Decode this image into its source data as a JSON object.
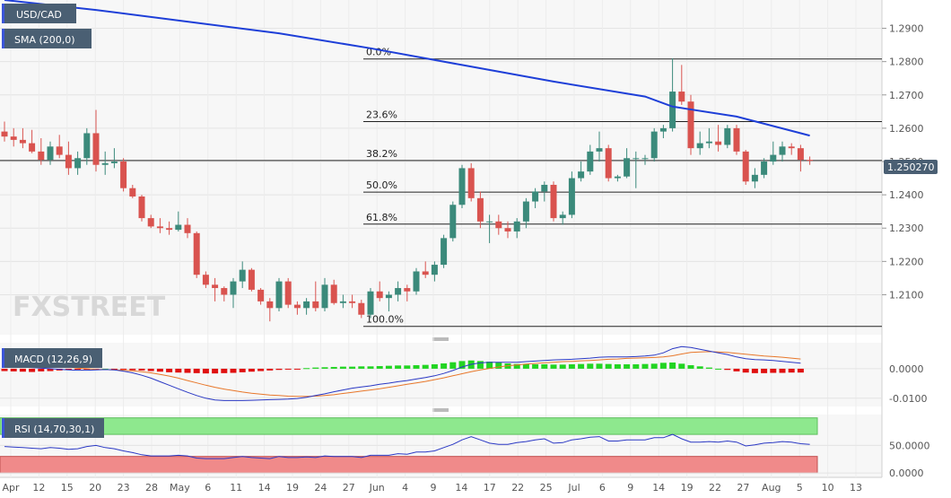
{
  "chart_data": {
    "type": "candlestick",
    "symbol": "USD/CAD",
    "overlay_label": "SMA (200,0)",
    "watermark": "FXSTREET",
    "last_price_label": "1.250270",
    "last_price": 1.2503,
    "price_axis": {
      "ylim": [
        1.198,
        1.2985
      ],
      "ticks": [
        "1.2100",
        "1.2200",
        "1.2300",
        "1.2400",
        "1.2500",
        "1.2600",
        "1.2700",
        "1.2800",
        "1.2900"
      ]
    },
    "fib_levels": [
      {
        "label": "0.0%",
        "value": 1.2808
      },
      {
        "label": "23.6%",
        "value": 1.262
      },
      {
        "label": "38.2%",
        "value": 1.2503
      },
      {
        "label": "50.0%",
        "value": 1.2408
      },
      {
        "label": "61.8%",
        "value": 1.2312
      },
      {
        "label": "100.0%",
        "value": 1.2005
      }
    ],
    "x_ticks": [
      "Apr",
      "12",
      "15",
      "20",
      "23",
      "28",
      "May",
      "6",
      "11",
      "14",
      "19",
      "24",
      "27",
      "Jun",
      "4",
      "9",
      "14",
      "17",
      "22",
      "25",
      "Jul",
      "6",
      "9",
      "14",
      "19",
      "22",
      "27",
      "Aug",
      "5",
      "10",
      "13"
    ],
    "candles": [
      [
        1.259,
        1.262,
        1.256,
        1.2575
      ],
      [
        1.2575,
        1.26,
        1.2545,
        1.2565
      ],
      [
        1.2565,
        1.26,
        1.254,
        1.2555
      ],
      [
        1.2555,
        1.2595,
        1.2525,
        1.253
      ],
      [
        1.253,
        1.257,
        1.249,
        1.2505
      ],
      [
        1.2505,
        1.256,
        1.249,
        1.2545
      ],
      [
        1.2545,
        1.258,
        1.251,
        1.252
      ],
      [
        1.252,
        1.256,
        1.246,
        1.248
      ],
      [
        1.248,
        1.253,
        1.246,
        1.251
      ],
      [
        1.251,
        1.26,
        1.249,
        1.2585
      ],
      [
        1.2585,
        1.2655,
        1.247,
        1.249
      ],
      [
        1.249,
        1.253,
        1.246,
        1.2495
      ],
      [
        1.2495,
        1.254,
        1.248,
        1.25
      ],
      [
        1.25,
        1.251,
        1.241,
        1.242
      ],
      [
        1.242,
        1.243,
        1.239,
        1.2395
      ],
      [
        1.2395,
        1.24,
        1.232,
        1.233
      ],
      [
        1.233,
        1.234,
        1.23,
        1.2305
      ],
      [
        1.2305,
        1.233,
        1.2285,
        1.23
      ],
      [
        1.23,
        1.232,
        1.228,
        1.2295
      ],
      [
        1.2295,
        1.235,
        1.229,
        1.231
      ],
      [
        1.231,
        1.233,
        1.227,
        1.2285
      ],
      [
        1.2285,
        1.229,
        1.215,
        1.216
      ],
      [
        1.216,
        1.217,
        1.212,
        1.213
      ],
      [
        1.213,
        1.215,
        1.208,
        1.212
      ],
      [
        1.212,
        1.2125,
        1.208,
        1.21
      ],
      [
        1.21,
        1.215,
        1.206,
        1.214
      ],
      [
        1.214,
        1.22,
        1.212,
        1.2175
      ],
      [
        1.2175,
        1.218,
        1.211,
        1.2115
      ],
      [
        1.2115,
        1.212,
        1.207,
        1.208
      ],
      [
        1.208,
        1.209,
        1.202,
        1.206
      ],
      [
        1.206,
        1.215,
        1.205,
        1.214
      ],
      [
        1.214,
        1.215,
        1.206,
        1.207
      ],
      [
        1.207,
        1.208,
        1.204,
        1.206
      ],
      [
        1.206,
        1.209,
        1.204,
        1.208
      ],
      [
        1.208,
        1.214,
        1.205,
        1.206
      ],
      [
        1.206,
        1.215,
        1.205,
        1.213
      ],
      [
        1.213,
        1.2145,
        1.207,
        1.2075
      ],
      [
        1.2075,
        1.21,
        1.206,
        1.208
      ],
      [
        1.208,
        1.21,
        1.206,
        1.2075
      ],
      [
        1.2075,
        1.2085,
        1.203,
        1.204
      ],
      [
        1.204,
        1.212,
        1.203,
        1.211
      ],
      [
        1.211,
        1.214,
        1.208,
        1.209
      ],
      [
        1.209,
        1.211,
        1.205,
        1.21
      ],
      [
        1.21,
        1.214,
        1.208,
        1.212
      ],
      [
        1.212,
        1.213,
        1.208,
        1.211
      ],
      [
        1.211,
        1.218,
        1.21,
        1.217
      ],
      [
        1.217,
        1.22,
        1.215,
        1.216
      ],
      [
        1.216,
        1.22,
        1.214,
        1.219
      ],
      [
        1.219,
        1.228,
        1.218,
        1.227
      ],
      [
        1.227,
        1.238,
        1.226,
        1.237
      ],
      [
        1.237,
        1.249,
        1.236,
        1.248
      ],
      [
        1.248,
        1.2495,
        1.238,
        1.239
      ],
      [
        1.239,
        1.241,
        1.23,
        1.232
      ],
      [
        1.232,
        1.234,
        1.2255,
        1.232
      ],
      [
        1.232,
        1.234,
        1.228,
        1.23
      ],
      [
        1.23,
        1.232,
        1.227,
        1.229
      ],
      [
        1.229,
        1.233,
        1.227,
        1.232
      ],
      [
        1.232,
        1.239,
        1.23,
        1.238
      ],
      [
        1.238,
        1.242,
        1.236,
        1.241
      ],
      [
        1.241,
        1.244,
        1.238,
        1.243
      ],
      [
        1.243,
        1.244,
        1.232,
        1.233
      ],
      [
        1.233,
        1.235,
        1.231,
        1.234
      ],
      [
        1.234,
        1.247,
        1.233,
        1.245
      ],
      [
        1.245,
        1.25,
        1.244,
        1.247
      ],
      [
        1.247,
        1.255,
        1.246,
        1.253
      ],
      [
        1.253,
        1.259,
        1.25,
        1.254
      ],
      [
        1.254,
        1.255,
        1.244,
        1.245
      ],
      [
        1.245,
        1.246,
        1.244,
        1.2455
      ],
      [
        1.2455,
        1.254,
        1.245,
        1.251
      ],
      [
        1.251,
        1.253,
        1.242,
        1.251
      ],
      [
        1.251,
        1.252,
        1.249,
        1.251
      ],
      [
        1.251,
        1.26,
        1.25,
        1.259
      ],
      [
        1.259,
        1.261,
        1.257,
        1.26
      ],
      [
        1.26,
        1.281,
        1.259,
        1.271
      ],
      [
        1.271,
        1.279,
        1.267,
        1.268
      ],
      [
        1.268,
        1.27,
        1.252,
        1.254
      ],
      [
        1.254,
        1.259,
        1.252,
        1.2555
      ],
      [
        1.2555,
        1.26,
        1.254,
        1.256
      ],
      [
        1.256,
        1.261,
        1.253,
        1.255
      ],
      [
        1.255,
        1.261,
        1.254,
        1.26
      ],
      [
        1.26,
        1.261,
        1.252,
        1.253
      ],
      [
        1.253,
        1.2535,
        1.243,
        1.244
      ],
      [
        1.244,
        1.248,
        1.242,
        1.246
      ],
      [
        1.246,
        1.251,
        1.245,
        1.25
      ],
      [
        1.25,
        1.256,
        1.249,
        1.252
      ],
      [
        1.252,
        1.256,
        1.25,
        1.2545
      ],
      [
        1.2545,
        1.2555,
        1.252,
        1.254
      ],
      [
        1.254,
        1.255,
        1.247,
        1.2505
      ],
      [
        1.2505,
        1.2515,
        1.249,
        1.2503
      ]
    ],
    "sma": [
      [
        0,
        1.2985
      ],
      [
        10,
        1.2955
      ],
      [
        20,
        1.292
      ],
      [
        30,
        1.2885
      ],
      [
        40,
        1.284
      ],
      [
        50,
        1.279
      ],
      [
        60,
        1.274
      ],
      [
        70,
        1.2695
      ],
      [
        73,
        1.2665
      ],
      [
        80,
        1.2635
      ],
      [
        88,
        1.2578
      ]
    ],
    "macd": {
      "label": "MACD (12,26,9)",
      "ylim": [
        -0.0128,
        0.0088
      ],
      "ticks": [
        {
          "label": "0.0000",
          "value": 0.0
        },
        {
          "label": "-0.0100",
          "value": -0.01
        }
      ],
      "histogram": [
        -0.0008,
        -0.0009,
        -0.001,
        -0.0011,
        -0.0009,
        -0.0008,
        -0.0006,
        -0.0004,
        -0.0003,
        -0.0002,
        -0.0001,
        0.0,
        -0.0001,
        -0.0003,
        -0.0005,
        -0.0006,
        -0.0008,
        -0.001,
        -0.0012,
        -0.0013,
        -0.0014,
        -0.0015,
        -0.0016,
        -0.0016,
        -0.0015,
        -0.0014,
        -0.0012,
        -0.001,
        -0.0008,
        -0.0006,
        -0.0004,
        -0.0002,
        -0.0001,
        0.0002,
        0.0004,
        0.0005,
        0.0006,
        0.0007,
        0.0007,
        0.0008,
        0.0008,
        0.0009,
        0.001,
        0.0011,
        0.0011,
        0.0012,
        0.0013,
        0.0015,
        0.0018,
        0.0022,
        0.0026,
        0.0028,
        0.0026,
        0.0024,
        0.0021,
        0.0018,
        0.0016,
        0.0015,
        0.0015,
        0.0015,
        0.0014,
        0.0014,
        0.0015,
        0.0016,
        0.0017,
        0.0017,
        0.0016,
        0.0015,
        0.0015,
        0.0015,
        0.0016,
        0.0017,
        0.002,
        0.0021,
        0.0017,
        0.0012,
        0.0008,
        0.0004,
        0.0,
        -0.0004,
        -0.0009,
        -0.0013,
        -0.0015,
        -0.0015,
        -0.0014,
        -0.0014,
        -0.0013,
        -0.0013
      ],
      "macd_line": [
        0.0009,
        0.0008,
        0.0006,
        0.0004,
        0.0002,
        0.0,
        -0.0002,
        -0.0004,
        -0.0005,
        -0.0005,
        -0.0004,
        -0.0003,
        -0.0004,
        -0.0008,
        -0.0014,
        -0.0022,
        -0.0032,
        -0.0044,
        -0.0056,
        -0.0068,
        -0.008,
        -0.0091,
        -0.01,
        -0.0106,
        -0.0108,
        -0.0108,
        -0.0108,
        -0.0107,
        -0.0106,
        -0.0105,
        -0.0104,
        -0.0103,
        -0.0101,
        -0.0097,
        -0.0091,
        -0.0085,
        -0.0078,
        -0.0072,
        -0.0066,
        -0.0062,
        -0.0058,
        -0.0053,
        -0.0049,
        -0.0044,
        -0.004,
        -0.0035,
        -0.003,
        -0.0024,
        -0.0016,
        -0.0006,
        0.0006,
        0.0015,
        0.002,
        0.0022,
        0.0022,
        0.0022,
        0.0022,
        0.0024,
        0.0026,
        0.0028,
        0.003,
        0.0031,
        0.0032,
        0.0034,
        0.0036,
        0.0039,
        0.004,
        0.004,
        0.004,
        0.0041,
        0.0043,
        0.0046,
        0.0054,
        0.0068,
        0.0075,
        0.0072,
        0.0066,
        0.006,
        0.0054,
        0.0048,
        0.004,
        0.0034,
        0.0031,
        0.003,
        0.0028,
        0.0025,
        0.0022,
        0.0019
      ],
      "signal_line": [
        0.0017,
        0.0017,
        0.0016,
        0.0015,
        0.0013,
        0.0011,
        0.0008,
        0.0005,
        0.0002,
        0.0,
        -0.0002,
        -0.0003,
        -0.0004,
        -0.0005,
        -0.0007,
        -0.001,
        -0.0014,
        -0.0019,
        -0.0025,
        -0.0032,
        -0.004,
        -0.0048,
        -0.0056,
        -0.0063,
        -0.0069,
        -0.0074,
        -0.0079,
        -0.0083,
        -0.0086,
        -0.0089,
        -0.0091,
        -0.0093,
        -0.0094,
        -0.0094,
        -0.0093,
        -0.0091,
        -0.0088,
        -0.0084,
        -0.008,
        -0.0076,
        -0.0072,
        -0.0068,
        -0.0063,
        -0.0058,
        -0.0053,
        -0.0048,
        -0.0043,
        -0.0037,
        -0.0031,
        -0.0024,
        -0.0017,
        -0.001,
        -0.0004,
        0.0001,
        0.0006,
        0.001,
        0.0013,
        0.0016,
        0.0018,
        0.002,
        0.0022,
        0.0024,
        0.0025,
        0.0027,
        0.0028,
        0.003,
        0.0032,
        0.0033,
        0.0035,
        0.0036,
        0.0037,
        0.0038,
        0.004,
        0.0044,
        0.005,
        0.0055,
        0.0057,
        0.0058,
        0.0057,
        0.0055,
        0.0052,
        0.0049,
        0.0046,
        0.0043,
        0.0041,
        0.0039,
        0.0036,
        0.0033
      ]
    },
    "rsi": {
      "label": "RSI (14,70,30,1)",
      "ylim": [
        -8,
        106
      ],
      "overbought": 70,
      "oversold": 30,
      "ticks": [
        {
          "label": "50.0000",
          "value": 50
        },
        {
          "label": "0.0000",
          "value": 0
        }
      ],
      "values": [
        48,
        47,
        46,
        45,
        44,
        46,
        45,
        43,
        44,
        48,
        50,
        46,
        44,
        40,
        37,
        33,
        31,
        31,
        31,
        32,
        31,
        27,
        26,
        26,
        26,
        28,
        30,
        28,
        27,
        26,
        30,
        28,
        28,
        29,
        28,
        31,
        30,
        30,
        30,
        28,
        32,
        32,
        32,
        35,
        34,
        38,
        38,
        40,
        46,
        52,
        60,
        66,
        60,
        54,
        52,
        52,
        55,
        57,
        60,
        62,
        54,
        55,
        60,
        62,
        65,
        66,
        58,
        58,
        60,
        60,
        60,
        64,
        64,
        70,
        62,
        56,
        56,
        57,
        56,
        58,
        56,
        49,
        51,
        54,
        55,
        57,
        56,
        53,
        52
      ]
    },
    "colors": {
      "bull": "#3b8a7b",
      "bear": "#d9534f",
      "sma": "#1e3fd8",
      "macd_line": "#2a38c4",
      "signal_line": "#e8772a",
      "hist_pos": "#22d422",
      "hist_neg": "#e01010",
      "rsi_line": "#2a38c4",
      "rsi_overbought": "#8ee88e",
      "rsi_oversold": "#f08a8a",
      "badge": "#4a5f73"
    }
  }
}
